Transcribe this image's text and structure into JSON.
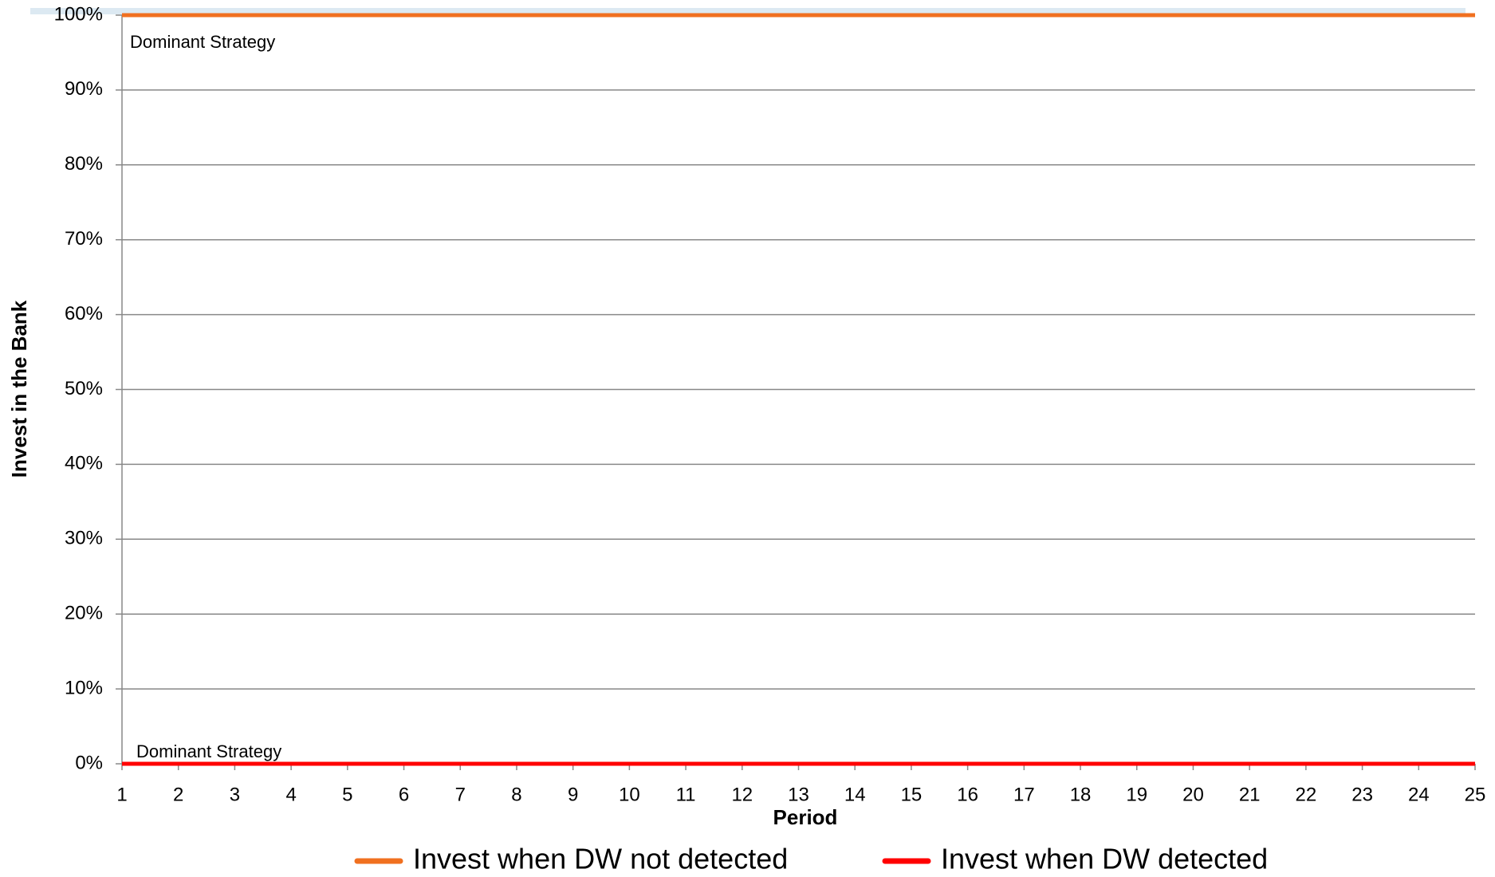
{
  "chart_data": {
    "type": "line",
    "x": [
      1,
      2,
      3,
      4,
      5,
      6,
      7,
      8,
      9,
      10,
      11,
      12,
      13,
      14,
      15,
      16,
      17,
      18,
      19,
      20,
      21,
      22,
      23,
      24,
      25
    ],
    "series": [
      {
        "name": "Invest when DW not detected",
        "color": "#f07020",
        "values": [
          100,
          100,
          100,
          100,
          100,
          100,
          100,
          100,
          100,
          100,
          100,
          100,
          100,
          100,
          100,
          100,
          100,
          100,
          100,
          100,
          100,
          100,
          100,
          100,
          100
        ]
      },
      {
        "name": "Invest when DW detected",
        "color": "#ff0000",
        "values": [
          0,
          0,
          0,
          0,
          0,
          0,
          0,
          0,
          0,
          0,
          0,
          0,
          0,
          0,
          0,
          0,
          0,
          0,
          0,
          0,
          0,
          0,
          0,
          0,
          0
        ]
      }
    ],
    "xlabel": "Period",
    "ylabel": "Invest in the Bank",
    "xlim": [
      1,
      25
    ],
    "xticks": [
      1,
      2,
      3,
      4,
      5,
      6,
      7,
      8,
      9,
      10,
      11,
      12,
      13,
      14,
      15,
      16,
      17,
      18,
      19,
      20,
      21,
      22,
      23,
      24,
      25
    ],
    "ylim": [
      0,
      100
    ],
    "yticks": [
      {
        "value": 0,
        "label": "0%"
      },
      {
        "value": 10,
        "label": "10%"
      },
      {
        "value": 20,
        "label": "20%"
      },
      {
        "value": 30,
        "label": "30%"
      },
      {
        "value": 40,
        "label": "40%"
      },
      {
        "value": 50,
        "label": "50%"
      },
      {
        "value": 60,
        "label": "60%"
      },
      {
        "value": 70,
        "label": "70%"
      },
      {
        "value": 80,
        "label": "80%"
      },
      {
        "value": 90,
        "label": "90%"
      },
      {
        "value": 100,
        "label": "100%"
      }
    ],
    "grid": true,
    "annotations": [
      "Dominant Strategy",
      "Dominant Strategy"
    ]
  }
}
